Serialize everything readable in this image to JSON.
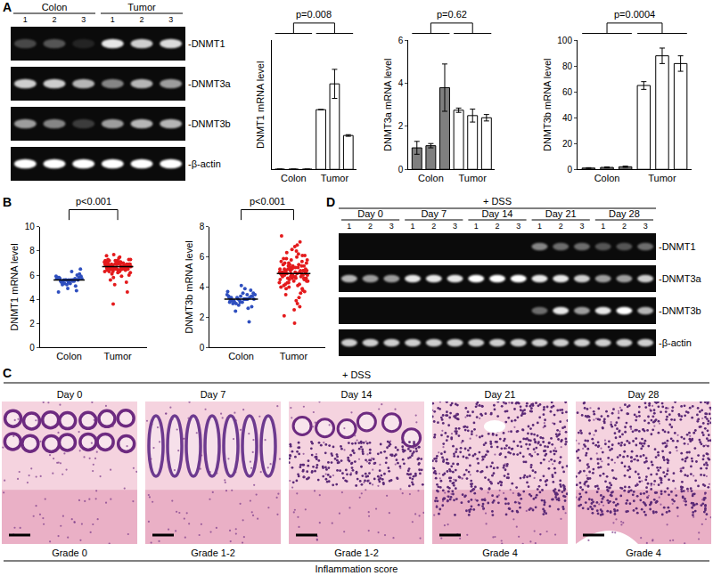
{
  "panel_labels": [
    "A",
    "B",
    "C",
    "D"
  ],
  "chart_data": [
    {
      "type": "bar",
      "y_label": "DNMT1 mRNA level",
      "categories": [
        null,
        "Colon",
        null,
        null,
        "Tumor",
        null
      ],
      "values": [
        1,
        1,
        1,
        370,
        530,
        210
      ],
      "errors": [
        0,
        0,
        0,
        0,
        90,
        5
      ],
      "colors": [
        "#7f7f7f",
        "#7f7f7f",
        "#7f7f7f",
        "#ffffff",
        "#ffffff",
        "#ffffff"
      ],
      "ylim": [
        0,
        800
      ],
      "tick_labels": "x",
      "annotations": [
        {
          "text": "p=0.008"
        }
      ]
    },
    {
      "type": "bar",
      "y_label": "DNMT3a mRNA level",
      "categories": [
        null,
        "Colon",
        null,
        null,
        "Tumor",
        null
      ],
      "values": [
        1.0,
        1.1,
        3.8,
        2.75,
        2.5,
        2.4
      ],
      "errors": [
        0.3,
        0.1,
        1.1,
        0.1,
        0.3,
        0.15
      ],
      "colors": [
        "#7f7f7f",
        "#7f7f7f",
        "#7f7f7f",
        "#ffffff",
        "#ffffff",
        "#ffffff"
      ],
      "ylim": [
        0,
        6
      ],
      "yticks": [
        0,
        2,
        4,
        6
      ],
      "annotations": [
        {
          "text": "p=0.62"
        }
      ]
    },
    {
      "type": "bar",
      "y_label": "DNMT3b mRNA level",
      "categories": [
        null,
        "Colon",
        null,
        null,
        "Tumor",
        null
      ],
      "values": [
        1,
        1.5,
        2,
        65,
        88,
        82
      ],
      "errors": [
        0.3,
        0.4,
        0.5,
        3,
        6,
        6
      ],
      "colors": [
        "#7f7f7f",
        "#7f7f7f",
        "#7f7f7f",
        "#ffffff",
        "#ffffff",
        "#ffffff"
      ],
      "ylim": [
        0,
        100
      ],
      "yticks": [
        0,
        20,
        40,
        60,
        80,
        100
      ],
      "annotations": [
        {
          "text": "p=0.0004"
        }
      ]
    },
    {
      "type": "scatter",
      "y_label": "DNMT1 mRNA level",
      "categories": [
        "Colon",
        "Tumor"
      ],
      "colors": [
        "#2f4fbf",
        "#e41a1c"
      ],
      "means": [
        5.6,
        6.7
      ],
      "values": [
        [
          5.6,
          5.5,
          5.7,
          5.4,
          5.8,
          5.6,
          5.3,
          5.9,
          5.6,
          5.5,
          6.0,
          5.2,
          5.7,
          5.6,
          5.4,
          6.1,
          5.5,
          5.8,
          5.1,
          5.6,
          5.7,
          6.3,
          5.4,
          5.6,
          4.9,
          5.8,
          5.5,
          5.6,
          6.5,
          5.3,
          5.7,
          4.7,
          5.6,
          5.9,
          5.5,
          5.2,
          5.8,
          5.6,
          4.6,
          5.7
        ],
        [
          6.7,
          6.5,
          6.8,
          6.9,
          6.6,
          7.0,
          6.4,
          6.7,
          7.1,
          6.3,
          6.8,
          6.6,
          7.2,
          6.5,
          6.9,
          6.7,
          6.2,
          7.0,
          6.8,
          6.6,
          7.3,
          6.4,
          6.7,
          6.9,
          6.5,
          7.1,
          6.6,
          6.8,
          6.0,
          7.4,
          6.7,
          6.5,
          6.9,
          6.3,
          7.0,
          6.8,
          6.6,
          7.2,
          6.4,
          6.7,
          5.8,
          6.9,
          7.5,
          6.6,
          6.8,
          6.5,
          7.0,
          6.7,
          6.1,
          6.9,
          6.4,
          7.3,
          6.8,
          6.6,
          6.7,
          7.1,
          5.6,
          6.5,
          6.9,
          7.6,
          6.7,
          6.3,
          6.8,
          7.0,
          6.6,
          6.4,
          7.2,
          6.9,
          5.9,
          6.7,
          6.5,
          7.1,
          6.8,
          6.6,
          7.7,
          6.2,
          6.9,
          6.7,
          5.4,
          7.0,
          6.8,
          6.5,
          6.6,
          7.3,
          6.4,
          6.9,
          6.7,
          5.2,
          7.1,
          6.6,
          6.8,
          4.6,
          6.5,
          7.0,
          6.7,
          3.6,
          6.9,
          6.3,
          7.2,
          6.6
        ]
      ],
      "ylim": [
        0,
        10
      ],
      "yticks": [
        0,
        2,
        4,
        6,
        8,
        10
      ],
      "annotations": [
        {
          "text": "p<0.001"
        }
      ]
    },
    {
      "type": "scatter",
      "y_label": "DNMT3b mRNA level",
      "categories": [
        "Colon",
        "Tumor"
      ],
      "colors": [
        "#2f4fbf",
        "#e41a1c"
      ],
      "means": [
        3.2,
        4.9
      ],
      "values": [
        [
          3.2,
          3.1,
          3.4,
          3.0,
          3.3,
          3.5,
          2.9,
          3.2,
          3.6,
          3.1,
          3.3,
          2.8,
          3.7,
          3.2,
          3.0,
          3.4,
          4.1,
          3.1,
          2.6,
          3.3,
          3.5,
          3.2,
          2.9,
          3.8,
          3.1,
          3.4,
          3.2,
          2.4,
          3.6,
          3.0,
          3.3,
          1.7,
          3.2,
          3.5,
          3.9,
          3.1,
          2.7,
          3.4,
          3.0,
          3.2
        ],
        [
          4.9,
          5.1,
          4.6,
          5.4,
          4.8,
          5.0,
          4.3,
          5.6,
          4.7,
          5.2,
          3.9,
          5.8,
          4.5,
          5.3,
          4.9,
          6.1,
          4.4,
          5.0,
          3.6,
          5.5,
          4.8,
          6.4,
          4.2,
          5.1,
          4.6,
          5.7,
          3.3,
          5.2,
          4.9,
          6.7,
          4.1,
          5.4,
          4.7,
          5.0,
          2.9,
          5.9,
          4.5,
          5.3,
          4.8,
          7.0,
          4.0,
          5.1,
          4.6,
          5.6,
          3.8,
          5.2,
          4.9,
          6.2,
          4.3,
          5.0,
          2.5,
          5.5,
          4.7,
          5.3,
          4.4,
          6.0,
          3.5,
          5.1,
          4.8,
          7.4,
          4.2,
          5.4,
          4.6,
          5.0,
          2.1,
          5.7,
          4.9,
          5.2,
          4.1,
          6.3,
          3.7,
          5.3,
          4.7,
          5.1,
          4.5,
          5.8,
          3.1,
          5.0,
          4.8,
          6.5,
          4.0,
          5.5,
          4.6,
          5.2,
          1.6,
          5.9,
          4.9,
          5.1,
          4.3,
          6.8,
          3.9,
          5.4,
          4.7,
          5.0,
          2.7,
          5.6,
          4.4,
          5.3,
          4.8,
          6.1
        ]
      ],
      "ylim": [
        0,
        8
      ],
      "yticks": [
        0,
        2,
        4,
        6,
        8
      ],
      "annotations": [
        {
          "text": "p<0.001"
        }
      ]
    }
  ],
  "gel_A": {
    "groups": [
      "Colon",
      "Tumor"
    ],
    "lanes": [
      "1",
      "2",
      "3"
    ],
    "rows": [
      {
        "label": "-DNMT1",
        "intensity": [
          0.25,
          0.3,
          0.1,
          0.9,
          0.8,
          0.85
        ]
      },
      {
        "label": "-DNMT3a",
        "intensity": [
          0.8,
          0.8,
          0.7,
          0.5,
          0.7,
          0.6
        ]
      },
      {
        "label": "-DNMT3b",
        "intensity": [
          0.6,
          0.5,
          0.2,
          0.6,
          0.7,
          0.7
        ]
      },
      {
        "label": "-β-actin",
        "intensity": [
          1,
          1,
          1,
          1,
          1,
          1
        ]
      }
    ]
  },
  "gel_D": {
    "header": "+ DSS",
    "groups": [
      "Day 0",
      "Day 7",
      "Day 14",
      "Day 21",
      "Day 28"
    ],
    "lanes": [
      "1",
      "2",
      "3"
    ],
    "rows": [
      {
        "label": "-DNMT1",
        "intensity": [
          0,
          0,
          0,
          0,
          0,
          0,
          0,
          0,
          0,
          0.5,
          0.4,
          0.4,
          0.3,
          0.3,
          0.4
        ]
      },
      {
        "label": "-DNMT3a",
        "intensity": [
          0.7,
          0.6,
          0.6,
          0.9,
          0.9,
          0.9,
          1,
          1,
          1,
          0.9,
          0.9,
          0.8,
          0.6,
          0.6,
          0.8
        ]
      },
      {
        "label": "-DNMT3b",
        "intensity": [
          0,
          0,
          0,
          0,
          0,
          0,
          0,
          0,
          0,
          0.4,
          0.9,
          0.6,
          0.9,
          1,
          0.7
        ]
      },
      {
        "label": "-β-actin",
        "intensity": [
          0.8,
          0.8,
          0.8,
          0.8,
          0.8,
          0.8,
          0.8,
          0.8,
          0.8,
          0.8,
          0.8,
          0.8,
          0.8,
          0.8,
          0.8
        ]
      }
    ]
  },
  "histology": {
    "header": "+ DSS",
    "days": [
      "Day 0",
      "Day 7",
      "Day 14",
      "Day 21",
      "Day 28"
    ],
    "grades": [
      "Grade 0",
      "Grade 1-2",
      "Grade 1-2",
      "Grade 4",
      "Grade 4"
    ],
    "footer": "Inflammation score"
  }
}
